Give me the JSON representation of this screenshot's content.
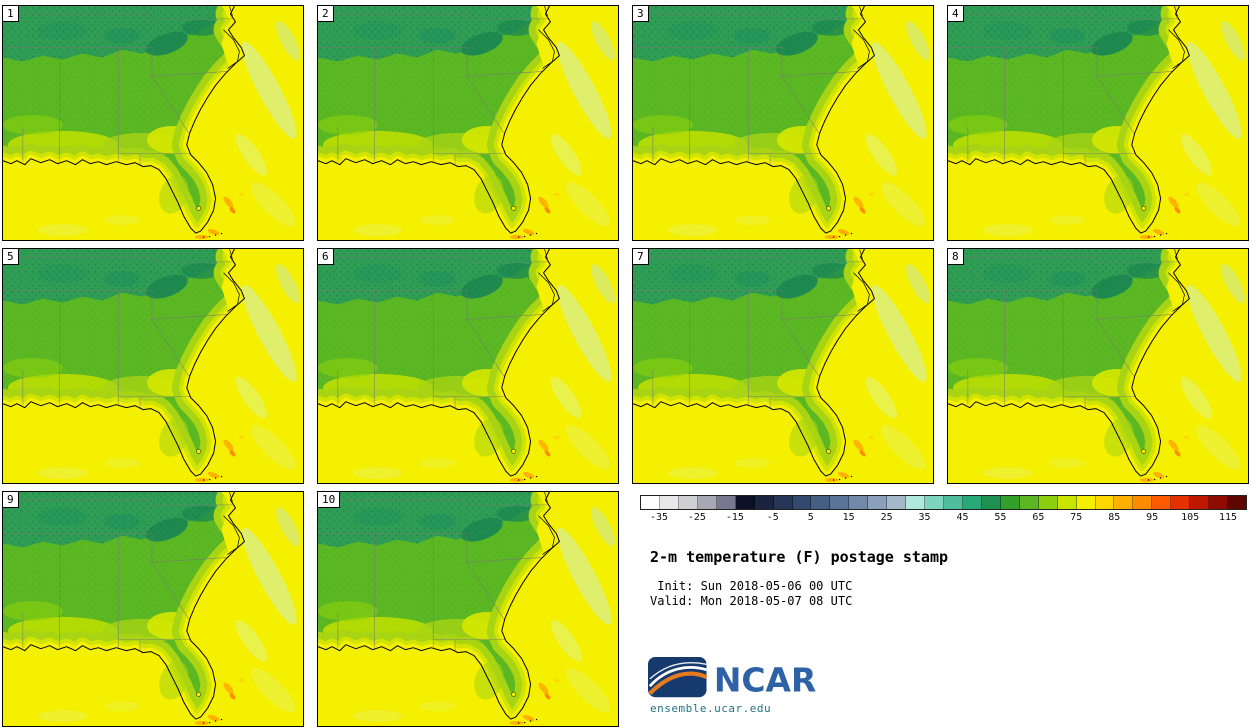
{
  "panels": [
    {
      "number": "1"
    },
    {
      "number": "2"
    },
    {
      "number": "3"
    },
    {
      "number": "4"
    },
    {
      "number": "5"
    },
    {
      "number": "6"
    },
    {
      "number": "7"
    },
    {
      "number": "8"
    },
    {
      "number": "9"
    },
    {
      "number": "10"
    }
  ],
  "colorbar": {
    "ticks": [
      "-35",
      "-25",
      "-15",
      "-5",
      "5",
      "15",
      "25",
      "35",
      "45",
      "55",
      "65",
      "75",
      "85",
      "95",
      "105",
      "115"
    ],
    "colors": [
      "#ffffff",
      "#e8e8e8",
      "#d0d0d4",
      "#a8a8b4",
      "#787890",
      "#0c1026",
      "#1a2440",
      "#263656",
      "#34496e",
      "#465e84",
      "#5b7398",
      "#7289aa",
      "#8ba0ba",
      "#a5b8ca",
      "#b0e8dc",
      "#7ed4bc",
      "#4fbe9a",
      "#2aa878",
      "#1e9150",
      "#33a02c",
      "#5cb822",
      "#8cd00e",
      "#c8e400",
      "#f4f000",
      "#ffd700",
      "#ffb000",
      "#ff8c00",
      "#ff5a00",
      "#e63000",
      "#c01800",
      "#900c00",
      "#600600"
    ]
  },
  "info": {
    "title": "2-m temperature (F) postage stamp",
    "init_line": " Init: Sun 2018-05-06 00 UTC",
    "valid_line": "Valid: Mon 2018-05-07 08 UTC",
    "logo_text": "NCAR",
    "footer_url": "ensemble.ucar.edu"
  },
  "map_palette": {
    "land_green": "#5cb822",
    "forest_green": "#33a02c",
    "dark_green": "#1e8a50",
    "yellow_green": "#a8d414",
    "pale_yellow_green": "#c8e400",
    "ocean_yellow": "#f4f000",
    "warm_orange": "#ffb000",
    "coast_line": "#000000",
    "state_line": "#777777"
  }
}
